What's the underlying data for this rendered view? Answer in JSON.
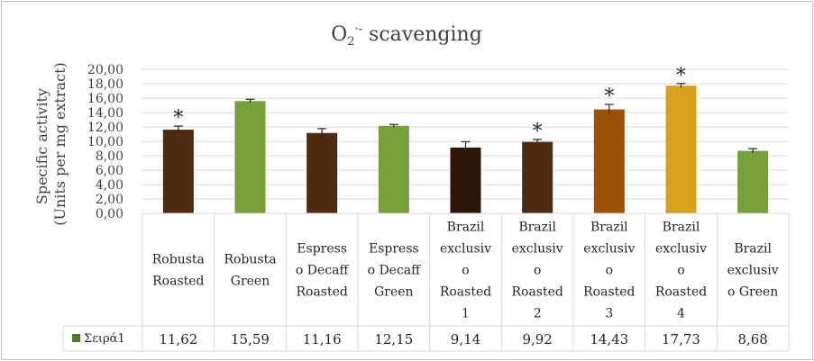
{
  "chart_data": {
    "type": "bar",
    "title_main": "O",
    "title_sub": "2",
    "title_sup": "·-",
    "title_rest": " scavenging",
    "ylabel_line1": "Specific activity",
    "ylabel_line2": "(Units per mg extract)",
    "ylim": [
      0,
      20
    ],
    "yticks": [
      "0,00",
      "2,00",
      "4,00",
      "6,00",
      "8,00",
      "10,00",
      "12,00",
      "14,00",
      "16,00",
      "18,00",
      "20,00"
    ],
    "grid": true,
    "categories": [
      [
        "Robusta",
        "Roasted"
      ],
      [
        "Robusta",
        "Green"
      ],
      [
        "Espress",
        "o Decaff",
        "Roasted"
      ],
      [
        "Espress",
        "o Decaff",
        "Green"
      ],
      [
        "Brazil",
        "exclusiv",
        "o",
        "Roasted",
        "1"
      ],
      [
        "Brazil",
        "exclusiv",
        "o",
        "Roasted",
        "2"
      ],
      [
        "Brazil",
        "exclusiv",
        "o",
        "Roasted",
        "3"
      ],
      [
        "Brazil",
        "exclusiv",
        "o",
        "Roasted",
        "4"
      ],
      [
        "Brazil",
        "exclusiv",
        "o Green"
      ]
    ],
    "series": [
      {
        "name": "Σειρά1",
        "values": [
          11.62,
          15.59,
          11.16,
          12.15,
          9.14,
          9.92,
          14.43,
          17.73,
          8.68
        ],
        "value_labels": [
          "11,62",
          "15,59",
          "11,16",
          "12,15",
          "9,14",
          "9,92",
          "14,43",
          "17,73",
          "8,68"
        ],
        "errors": [
          0.5,
          0.25,
          0.6,
          0.2,
          0.8,
          0.35,
          0.7,
          0.3,
          0.3
        ],
        "significant": [
          true,
          false,
          false,
          false,
          false,
          true,
          true,
          true,
          false
        ],
        "colors": [
          "#4e2a10",
          "#76a03a",
          "#4e2a10",
          "#76a03a",
          "#2e1606",
          "#4e2a10",
          "#9a5206",
          "#d8a01e",
          "#76a03a"
        ]
      }
    ],
    "legend_color": "#4a7a32",
    "star_symbol": "*"
  }
}
